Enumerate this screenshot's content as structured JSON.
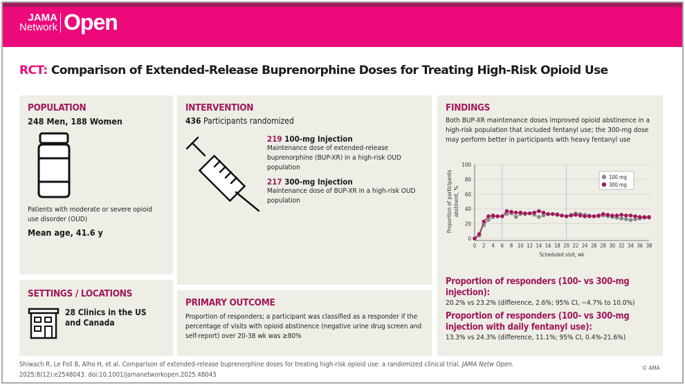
{
  "brand": {
    "line1": "JAMA",
    "line2": "Network",
    "name": "Open",
    "color": "#ec0a7b",
    "accent": "#a0195a"
  },
  "title": {
    "prefix": "RCT:",
    "text": "Comparison of Extended-Release Buprenorphine Doses for Treating High-Risk Opioid Use"
  },
  "population": {
    "heading": "POPULATION",
    "counts": "248 Men, 188 Women",
    "icon": "pill-bottle-icon",
    "description": "Patients with moderate or severe opioid use disorder (OUD)",
    "age": "Mean age, 41.6 y"
  },
  "settings": {
    "heading": "SETTINGS / LOCATIONS",
    "icon": "building-icon",
    "text": "28 Clinics in the US and Canada"
  },
  "intervention": {
    "heading": "INTERVENTION",
    "total": "436",
    "total_label": "Participants randomized",
    "icon": "syringe-icon",
    "arms": [
      {
        "n": "219",
        "label": "100-mg Injection",
        "description": "Maintenance dose of extended-release buprenorphine (BUP-XR) in a high-risk OUD population"
      },
      {
        "n": "217",
        "label": "300-mg Injection",
        "description": "Maintenance dose of BUP-XR in a high-risk OUD population"
      }
    ]
  },
  "primary_outcome": {
    "heading": "PRIMARY OUTCOME",
    "text": "Proportion of responders; a participant was classified as a responder if the percentage of visits with opioid abstinence (negative urine drug screen and self-report) over 20-38 wk was ≥80%"
  },
  "findings": {
    "heading": "FINDINGS",
    "text": "Both BUP-XR maintenance doses improved opioid abstinence in a high-risk population that included fentanyl use; the 300-mg dose may perform better in participants with heavy fentanyl use",
    "results": [
      {
        "label": "Proportion of responders (100- vs 300-mg injection):",
        "value": "20.2% vs 23.2% (difference, 2.6%; 95% CI, −4.7% to 10.0%)"
      },
      {
        "label": "Proportion of responders (100- vs 300-mg injection with daily fentanyl use):",
        "value": "13.3% vs 24.3% (difference, 11.1%; 95% CI, 0.4%-21.6%)"
      }
    ]
  },
  "chart_data": {
    "type": "line",
    "xlabel": "Scheduled visit, wk",
    "ylabel": "Proportion of participants abstinent, %",
    "xlim": [
      0,
      38
    ],
    "ylim": [
      0,
      100
    ],
    "xticks": [
      0,
      2,
      4,
      6,
      8,
      10,
      12,
      14,
      16,
      18,
      20,
      22,
      24,
      26,
      28,
      30,
      32,
      34,
      36,
      38
    ],
    "yticks": [
      0,
      20,
      40,
      60,
      80,
      100
    ],
    "grid": true,
    "legend": "top-right",
    "reference_lines_x": [
      6,
      20
    ],
    "series": [
      {
        "name": "100 mg",
        "color": "#8a8a8a",
        "values": [
          0,
          4,
          18,
          25,
          29,
          30,
          30,
          33,
          34,
          29,
          33,
          33,
          34,
          32,
          29,
          31,
          33,
          33,
          33,
          31,
          30,
          32,
          34,
          33,
          32,
          31,
          30,
          30,
          31,
          30,
          29,
          28,
          27,
          26,
          25,
          26,
          27,
          28,
          28
        ]
      },
      {
        "name": "300 mg",
        "color": "#a0195a",
        "values": [
          0,
          6,
          23,
          30,
          31,
          30,
          30,
          37,
          36,
          35,
          35,
          34,
          34,
          35,
          37,
          35,
          33,
          33,
          32,
          31,
          30,
          31,
          32,
          31,
          30,
          30,
          30,
          31,
          33,
          32,
          31,
          31,
          32,
          31,
          31,
          30,
          29,
          29,
          29
        ]
      }
    ]
  },
  "citation": {
    "authors": "Shiwach R, Le Foll B, Alho H, et al. Comparison of extended-release buprenorphine doses for treating high-risk opioid use: a randomized clinical trial.",
    "journal": "JAMA Netw Open.",
    "ref": "2025;8(12):e2548043. doi:10.1001/jamanetworkopen.2025.48043",
    "copyright": "© AMA"
  }
}
